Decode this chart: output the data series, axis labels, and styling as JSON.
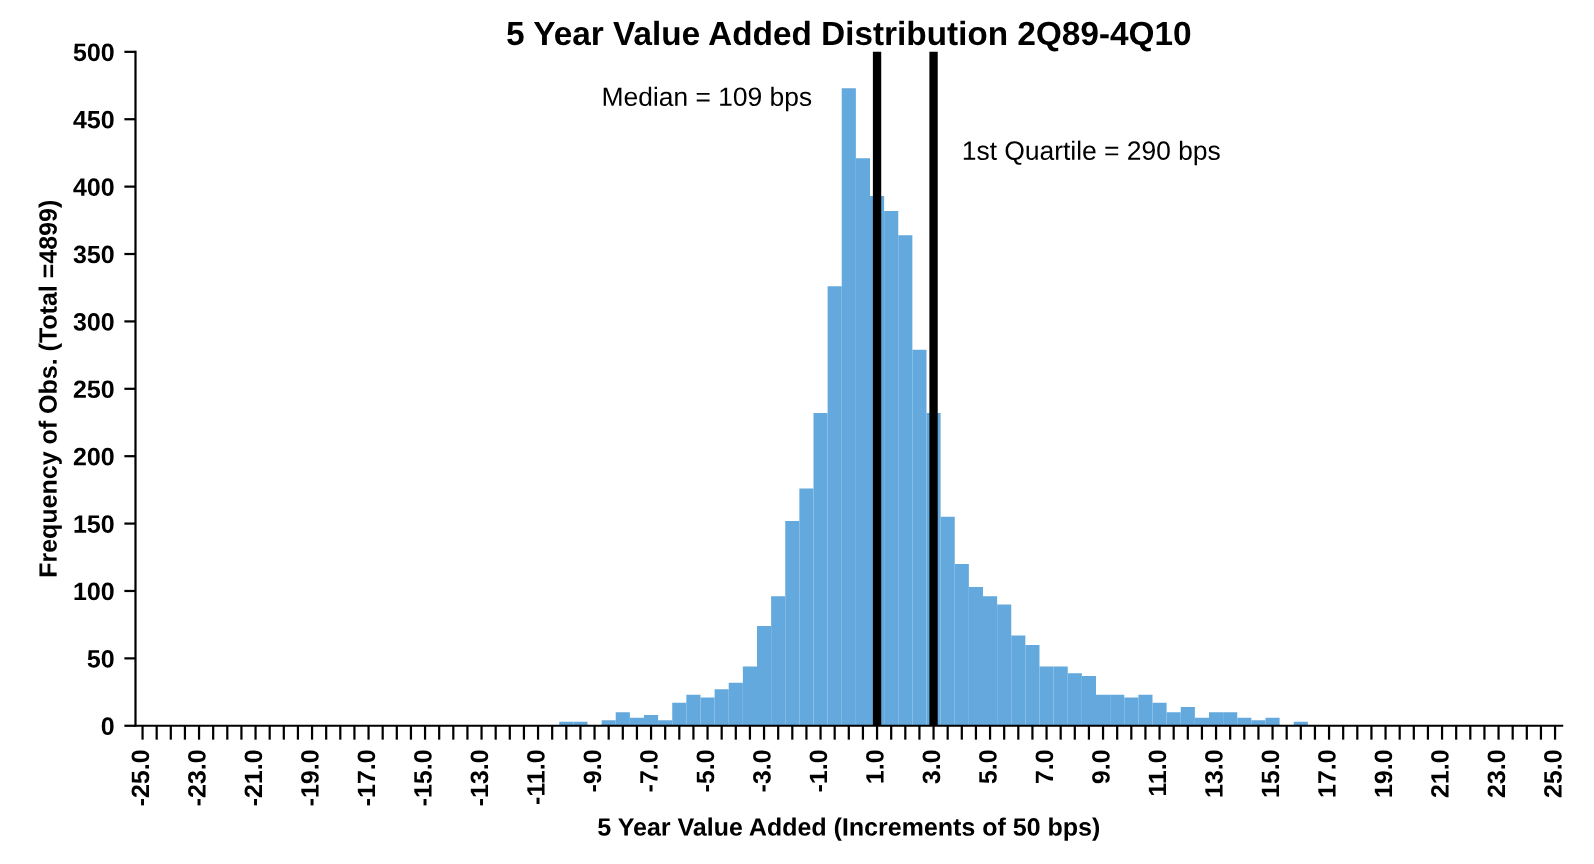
{
  "chart_data": {
    "type": "histogram",
    "title": "5 Year Value Added Distribution 2Q89-4Q10",
    "xlabel": "5 Year Value Added (Increments of 50 bps)",
    "ylabel": "Frequency of Obs. (Total =4899)",
    "color": "#63a9dd",
    "bins": [
      -25.25,
      -24.75,
      -24.25,
      -23.75,
      -23.25,
      -22.75,
      -22.25,
      -21.75,
      -21.25,
      -20.75,
      -20.25,
      -19.75,
      -19.25,
      -18.75,
      -18.25,
      -17.75,
      -17.25,
      -16.75,
      -16.25,
      -15.75,
      -15.25,
      -14.75,
      -14.25,
      -13.75,
      -13.25,
      -12.75,
      -12.25,
      -11.75,
      -11.25,
      -10.75,
      -10.25,
      -9.75,
      -9.25,
      -8.75,
      -8.25,
      -7.75,
      -7.25,
      -6.75,
      -6.25,
      -5.75,
      -5.25,
      -4.75,
      -4.25,
      -3.75,
      -3.25,
      -2.75,
      -2.25,
      -1.75,
      -1.25,
      -0.75,
      -0.25,
      0.25,
      0.75,
      1.25,
      1.75,
      2.25,
      2.75,
      3.25,
      3.75,
      4.25,
      4.75,
      5.25,
      5.75,
      6.25,
      6.75,
      7.25,
      7.75,
      8.25,
      8.75,
      9.25,
      9.75,
      10.25,
      10.75,
      11.25,
      11.75,
      12.25,
      12.75,
      13.25,
      13.75,
      14.25,
      14.75,
      15.25,
      15.75,
      16.25,
      16.75,
      17.25,
      17.75,
      18.25,
      18.75,
      19.25,
      19.75,
      20.25,
      20.75,
      21.25,
      21.75,
      22.25,
      22.75,
      23.25,
      23.75,
      24.25,
      24.75,
      25.25
    ],
    "values": [
      0,
      0,
      0,
      0,
      0,
      0,
      0,
      0,
      0,
      0,
      0,
      0,
      0,
      0,
      0,
      0,
      0,
      0,
      0,
      0,
      0,
      0,
      0,
      0,
      0,
      0,
      0,
      0,
      0,
      0,
      3,
      3,
      0,
      4,
      10,
      6,
      8,
      4,
      17,
      23,
      21,
      27,
      32,
      44,
      74,
      96,
      152,
      176,
      232,
      326,
      473,
      421,
      393,
      382,
      364,
      279,
      232,
      155,
      120,
      103,
      96,
      90,
      67,
      60,
      44,
      44,
      39,
      37,
      23,
      23,
      21,
      23,
      17,
      10,
      14,
      6,
      10,
      10,
      6,
      4,
      6,
      0,
      3,
      0,
      0,
      0,
      0,
      0,
      0,
      0,
      0,
      0,
      0,
      0,
      0,
      0,
      0,
      0,
      0,
      0,
      0
    ],
    "xlim": [
      -25.25,
      25.25
    ],
    "xticks": [
      {
        "value": -25,
        "label": "-25.0"
      },
      {
        "value": -24.5,
        "label": null
      },
      {
        "value": -24,
        "label": null
      },
      {
        "value": -23.5,
        "label": null
      },
      {
        "value": -23,
        "label": "-23.0"
      },
      {
        "value": -22.5,
        "label": null
      },
      {
        "value": -22,
        "label": null
      },
      {
        "value": -21.5,
        "label": null
      },
      {
        "value": -21,
        "label": "-21.0"
      },
      {
        "value": -20.5,
        "label": null
      },
      {
        "value": -20,
        "label": null
      },
      {
        "value": -19.5,
        "label": null
      },
      {
        "value": -19,
        "label": "-19.0"
      },
      {
        "value": -18.5,
        "label": null
      },
      {
        "value": -18,
        "label": null
      },
      {
        "value": -17.5,
        "label": null
      },
      {
        "value": -17,
        "label": "-17.0"
      },
      {
        "value": -16.5,
        "label": null
      },
      {
        "value": -16,
        "label": null
      },
      {
        "value": -15.5,
        "label": null
      },
      {
        "value": -15,
        "label": "-15.0"
      },
      {
        "value": -14.5,
        "label": null
      },
      {
        "value": -14,
        "label": null
      },
      {
        "value": -13.5,
        "label": null
      },
      {
        "value": -13,
        "label": "-13.0"
      },
      {
        "value": -12.5,
        "label": null
      },
      {
        "value": -12,
        "label": null
      },
      {
        "value": -11.5,
        "label": null
      },
      {
        "value": -11,
        "label": "-11.0"
      },
      {
        "value": -10.5,
        "label": null
      },
      {
        "value": -10,
        "label": null
      },
      {
        "value": -9.5,
        "label": null
      },
      {
        "value": -9,
        "label": "-9.0"
      },
      {
        "value": -8.5,
        "label": null
      },
      {
        "value": -8,
        "label": null
      },
      {
        "value": -7.5,
        "label": null
      },
      {
        "value": -7,
        "label": "-7.0"
      },
      {
        "value": -6.5,
        "label": null
      },
      {
        "value": -6,
        "label": null
      },
      {
        "value": -5.5,
        "label": null
      },
      {
        "value": -5,
        "label": "-5.0"
      },
      {
        "value": -4.5,
        "label": null
      },
      {
        "value": -4,
        "label": null
      },
      {
        "value": -3.5,
        "label": null
      },
      {
        "value": -3,
        "label": "-3.0"
      },
      {
        "value": -2.5,
        "label": null
      },
      {
        "value": -2,
        "label": null
      },
      {
        "value": -1.5,
        "label": null
      },
      {
        "value": -1,
        "label": "-1.0"
      },
      {
        "value": -0.5,
        "label": null
      },
      {
        "value": 0,
        "label": null
      },
      {
        "value": 0.5,
        "label": null
      },
      {
        "value": 1,
        "label": "1.0"
      },
      {
        "value": 1.5,
        "label": null
      },
      {
        "value": 2,
        "label": null
      },
      {
        "value": 2.5,
        "label": null
      },
      {
        "value": 3,
        "label": "3.0"
      },
      {
        "value": 3.5,
        "label": null
      },
      {
        "value": 4,
        "label": null
      },
      {
        "value": 4.5,
        "label": null
      },
      {
        "value": 5,
        "label": "5.0"
      },
      {
        "value": 5.5,
        "label": null
      },
      {
        "value": 6,
        "label": null
      },
      {
        "value": 6.5,
        "label": null
      },
      {
        "value": 7,
        "label": "7.0"
      },
      {
        "value": 7.5,
        "label": null
      },
      {
        "value": 8,
        "label": null
      },
      {
        "value": 8.5,
        "label": null
      },
      {
        "value": 9,
        "label": "9.0"
      },
      {
        "value": 9.5,
        "label": null
      },
      {
        "value": 10,
        "label": null
      },
      {
        "value": 10.5,
        "label": null
      },
      {
        "value": 11,
        "label": "11.0"
      },
      {
        "value": 11.5,
        "label": null
      },
      {
        "value": 12,
        "label": null
      },
      {
        "value": 12.5,
        "label": null
      },
      {
        "value": 13,
        "label": "13.0"
      },
      {
        "value": 13.5,
        "label": null
      },
      {
        "value": 14,
        "label": null
      },
      {
        "value": 14.5,
        "label": null
      },
      {
        "value": 15,
        "label": "15.0"
      },
      {
        "value": 15.5,
        "label": null
      },
      {
        "value": 16,
        "label": null
      },
      {
        "value": 16.5,
        "label": null
      },
      {
        "value": 17,
        "label": "17.0"
      },
      {
        "value": 17.5,
        "label": null
      },
      {
        "value": 18,
        "label": null
      },
      {
        "value": 18.5,
        "label": null
      },
      {
        "value": 19,
        "label": "19.0"
      },
      {
        "value": 19.5,
        "label": null
      },
      {
        "value": 20,
        "label": null
      },
      {
        "value": 20.5,
        "label": null
      },
      {
        "value": 21,
        "label": "21.0"
      },
      {
        "value": 21.5,
        "label": null
      },
      {
        "value": 22,
        "label": null
      },
      {
        "value": 22.5,
        "label": null
      },
      {
        "value": 23,
        "label": "23.0"
      },
      {
        "value": 23.5,
        "label": null
      },
      {
        "value": 24,
        "label": null
      },
      {
        "value": 24.5,
        "label": null
      },
      {
        "value": 25,
        "label": "25.0"
      }
    ],
    "ylim": [
      0,
      500
    ],
    "yticks": [
      0,
      50,
      100,
      150,
      200,
      250,
      300,
      350,
      400,
      450,
      500
    ],
    "grid": false,
    "legend": false,
    "annotations": [
      "Median = 109 bps",
      "1st Quartile = 290 bps"
    ],
    "ref_lines": [
      {
        "axis": "x",
        "value": 1.0,
        "color": "#000000"
      },
      {
        "axis": "x",
        "value": 3.0,
        "color": "#000000"
      }
    ]
  }
}
